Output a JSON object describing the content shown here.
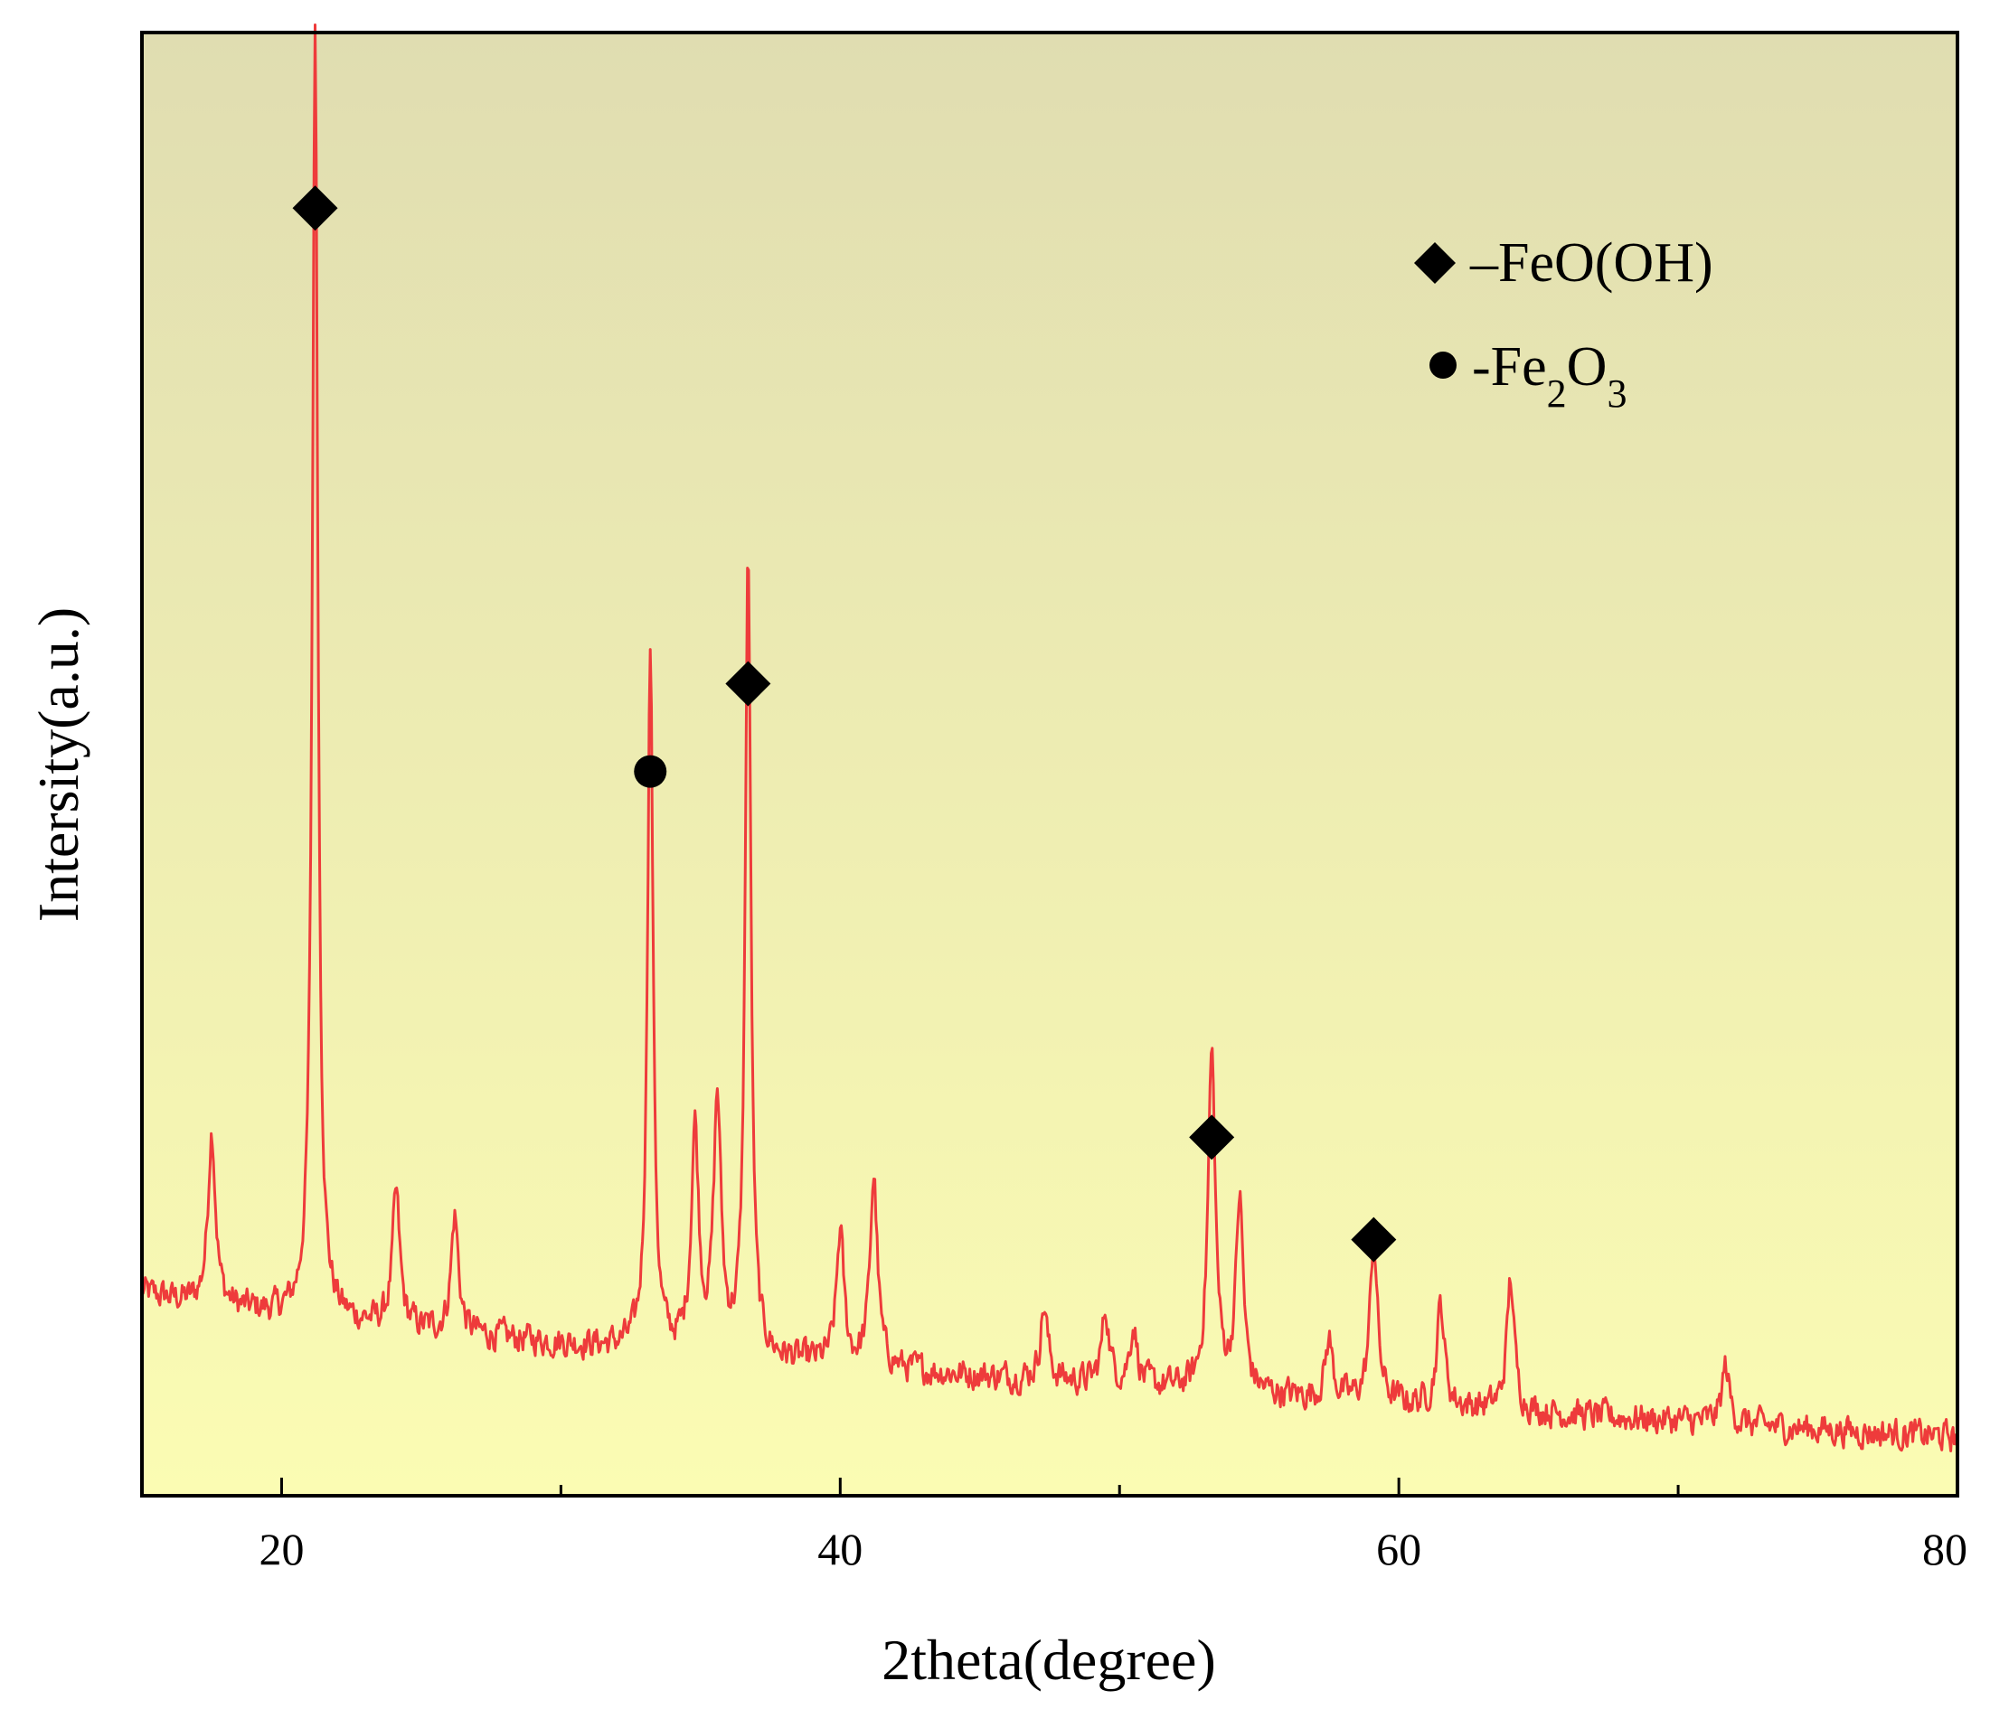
{
  "chart_data": {
    "type": "line",
    "title": "",
    "xlabel": "2theta(degree)",
    "ylabel": "Intersity(a.u.)",
    "xlim": [
      15,
      80
    ],
    "ylim": [
      0,
      100
    ],
    "x_ticks": [
      20,
      40,
      60,
      80
    ],
    "x_minor_ticks": [
      30,
      50,
      70
    ],
    "y_tick_labels_shown": false,
    "grid": false,
    "line_color": "#ee3b3b",
    "background_gradient": [
      "#e0ddb1",
      "#fbfcb3"
    ],
    "legend": {
      "placement": "top-right",
      "entries": [
        {
          "marker": "diamond",
          "text": "–FeO(OH)"
        },
        {
          "marker": "circle",
          "text_main": "-Fe",
          "sub1": "2",
          "text_mid": "O",
          "sub2": "3"
        }
      ]
    },
    "series": [
      {
        "peaks": [
          [
            17.5,
            12
          ],
          [
            21.2,
            88
          ],
          [
            24.1,
            9
          ],
          [
            26.2,
            8
          ],
          [
            33.2,
            48
          ],
          [
            34.8,
            15
          ],
          [
            35.6,
            17
          ],
          [
            36.7,
            55
          ],
          [
            40.0,
            9
          ],
          [
            41.2,
            13
          ],
          [
            47.3,
            5
          ],
          [
            49.5,
            5
          ],
          [
            50.5,
            4
          ],
          [
            53.3,
            23
          ],
          [
            54.3,
            13
          ],
          [
            57.5,
            4
          ],
          [
            59.1,
            11
          ],
          [
            61.5,
            7
          ],
          [
            64.0,
            9
          ],
          [
            71.7,
            4
          ]
        ],
        "baseline_start": 14,
        "baseline_end": 4
      }
    ],
    "markers": [
      {
        "symbol": "diamond",
        "x": 21.2,
        "y": 88
      },
      {
        "symbol": "circle",
        "x": 33.2,
        "y": 49.5
      },
      {
        "symbol": "diamond",
        "x": 36.7,
        "y": 55.5
      },
      {
        "symbol": "diamond",
        "x": 53.3,
        "y": 24.5
      },
      {
        "symbol": "diamond",
        "x": 59.1,
        "y": 17.5
      }
    ]
  }
}
